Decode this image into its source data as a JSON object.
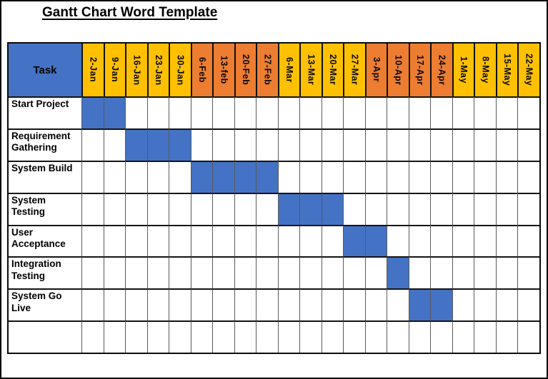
{
  "page": {
    "title": "Gantt Chart Word Template"
  },
  "colors": {
    "header_task_blue": "#4472C4",
    "bar_blue": "#4472C4",
    "gold": "#FFC000",
    "orange": "#ED7D31",
    "grid_line": "#141414",
    "text": "#000000"
  },
  "table": {
    "task_header": "Task",
    "columns": [
      {
        "label": "2-Jan",
        "group": "gold"
      },
      {
        "label": "9-Jan",
        "group": "gold"
      },
      {
        "label": "16-Jan",
        "group": "gold"
      },
      {
        "label": "23-Jan",
        "group": "gold"
      },
      {
        "label": "30-Jan",
        "group": "gold"
      },
      {
        "label": "6-Feb",
        "group": "orange"
      },
      {
        "label": "13-feb",
        "group": "orange"
      },
      {
        "label": "20-Feb",
        "group": "orange"
      },
      {
        "label": "27-Feb",
        "group": "orange"
      },
      {
        "label": "6-Mar",
        "group": "gold"
      },
      {
        "label": "13-Mar",
        "group": "gold"
      },
      {
        "label": "20-Mar",
        "group": "gold"
      },
      {
        "label": "27-Mar",
        "group": "gold"
      },
      {
        "label": "3-Apr",
        "group": "orange"
      },
      {
        "label": "10-Apr",
        "group": "orange"
      },
      {
        "label": "17-Apr",
        "group": "orange"
      },
      {
        "label": "24-Apr",
        "group": "orange"
      },
      {
        "label": "1-May",
        "group": "gold"
      },
      {
        "label": "8-May",
        "group": "gold"
      },
      {
        "label": "15-May",
        "group": "gold"
      },
      {
        "label": "22-May",
        "group": "gold"
      }
    ],
    "rows": [
      {
        "task": "Start Project",
        "filled": [
          1,
          2
        ]
      },
      {
        "task": "Requirement Gathering",
        "filled": [
          3,
          4,
          5
        ]
      },
      {
        "task": "System Build",
        "filled": [
          6,
          7,
          8,
          9
        ]
      },
      {
        "task": "System Testing",
        "filled": [
          10,
          11,
          12
        ]
      },
      {
        "task": "User Acceptance",
        "filled": [
          13,
          14
        ]
      },
      {
        "task": "Integration Testing",
        "filled": [
          15
        ]
      },
      {
        "task": "System Go Live",
        "filled": [
          16,
          17
        ]
      },
      {
        "task": "",
        "filled": []
      }
    ]
  },
  "chart_data": {
    "type": "table",
    "title": "Gantt Chart Word Template",
    "x_categories": [
      "2-Jan",
      "9-Jan",
      "16-Jan",
      "23-Jan",
      "30-Jan",
      "6-Feb",
      "13-feb",
      "20-Feb",
      "27-Feb",
      "6-Mar",
      "13-Mar",
      "20-Mar",
      "27-Mar",
      "3-Apr",
      "10-Apr",
      "17-Apr",
      "24-Apr",
      "1-May",
      "8-May",
      "15-May",
      "22-May"
    ],
    "tasks": [
      {
        "name": "Start Project",
        "start": "2-Jan",
        "end": "9-Jan",
        "duration_weeks": 2
      },
      {
        "name": "Requirement Gathering",
        "start": "16-Jan",
        "end": "30-Jan",
        "duration_weeks": 3
      },
      {
        "name": "System Build",
        "start": "6-Feb",
        "end": "27-Feb",
        "duration_weeks": 4
      },
      {
        "name": "System Testing",
        "start": "6-Mar",
        "end": "20-Mar",
        "duration_weeks": 3
      },
      {
        "name": "User Acceptance",
        "start": "27-Mar",
        "end": "3-Apr",
        "duration_weeks": 2
      },
      {
        "name": "Integration Testing",
        "start": "10-Apr",
        "end": "10-Apr",
        "duration_weeks": 1
      },
      {
        "name": "System Go Live",
        "start": "17-Apr",
        "end": "24-Apr",
        "duration_weeks": 2
      }
    ],
    "legend": "none",
    "grid": true,
    "bar_color": "#4472C4",
    "month_band_colors": {
      "Jan": "#FFC000",
      "Feb": "#ED7D31",
      "Mar": "#FFC000",
      "Apr": "#ED7D31",
      "May": "#FFC000"
    }
  }
}
